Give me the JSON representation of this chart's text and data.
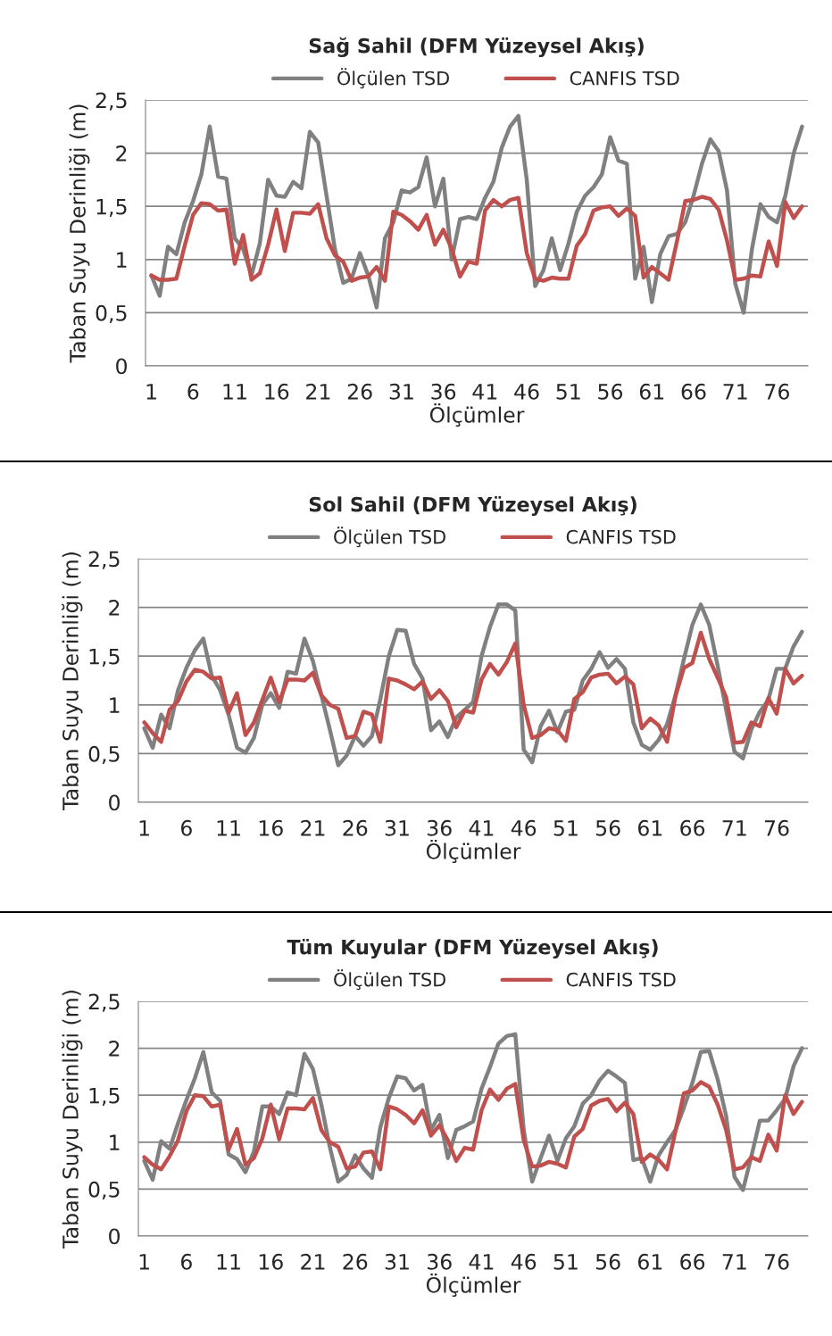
{
  "chart_data": [
    {
      "type": "line",
      "title": "Sağ Sahil (DFM Yüzeysel Akış)",
      "xlabel": "Ölçümler",
      "ylabel": "Taban Suyu Derinliği (m)",
      "categories": [
        "1",
        null,
        null,
        null,
        null,
        "6",
        null,
        null,
        null,
        null,
        "11",
        null,
        null,
        null,
        null,
        "16",
        null,
        null,
        null,
        null,
        "21",
        null,
        null,
        null,
        null,
        "26",
        null,
        null,
        null,
        null,
        "31",
        null,
        null,
        null,
        null,
        "36",
        null,
        null,
        null,
        null,
        "41",
        null,
        null,
        null,
        null,
        "46",
        null,
        null,
        null,
        null,
        "51",
        null,
        null,
        null,
        null,
        "56",
        null,
        null,
        null,
        null,
        "61",
        null,
        null,
        null,
        null,
        "66",
        null,
        null,
        null,
        null,
        "71",
        null,
        null,
        null,
        null,
        "76",
        null,
        null,
        null
      ],
      "ylim": [
        0,
        2.5
      ],
      "yticks": [
        0,
        {
          "value": 0.5,
          "label": "0,5"
        },
        1,
        {
          "value": 1.5,
          "label": "1,5"
        },
        2,
        {
          "value": 2.5,
          "label": "2,5"
        }
      ],
      "grid": "y",
      "legend": "top",
      "marker": "none",
      "line_style": "solid",
      "series": [
        {
          "name": "Ölçülen TSD",
          "color": "#808080",
          "values": [
            0.85,
            0.66,
            1.12,
            1.05,
            1.35,
            1.55,
            1.8,
            2.25,
            1.78,
            1.76,
            1.2,
            1.1,
            0.85,
            1.15,
            1.75,
            1.6,
            1.59,
            1.73,
            1.67,
            2.2,
            2.1,
            1.6,
            1.1,
            0.78,
            0.82,
            1.06,
            0.85,
            0.55,
            1.2,
            1.35,
            1.65,
            1.63,
            1.68,
            1.96,
            1.5,
            1.76,
            1.0,
            1.38,
            1.4,
            1.38,
            1.58,
            1.73,
            2.05,
            2.25,
            2.35,
            1.75,
            0.75,
            0.9,
            1.2,
            0.9,
            1.15,
            1.45,
            1.6,
            1.68,
            1.8,
            2.15,
            1.93,
            1.9,
            0.82,
            1.12,
            0.6,
            1.05,
            1.22,
            1.24,
            1.35,
            1.6,
            1.9,
            2.13,
            2.02,
            1.65,
            0.77,
            0.5,
            1.1,
            1.52,
            1.4,
            1.35,
            1.6,
            2.0,
            2.25
          ]
        },
        {
          "name": "CANFIS TSD",
          "color": "#c0504d",
          "values": [
            0.85,
            0.81,
            0.81,
            0.82,
            1.13,
            1.42,
            1.53,
            1.52,
            1.46,
            1.47,
            0.96,
            1.23,
            0.81,
            0.87,
            1.14,
            1.47,
            1.08,
            1.44,
            1.44,
            1.43,
            1.52,
            1.2,
            1.04,
            0.98,
            0.8,
            0.83,
            0.84,
            0.93,
            0.8,
            1.45,
            1.42,
            1.36,
            1.28,
            1.42,
            1.14,
            1.28,
            1.1,
            0.84,
            0.98,
            0.96,
            1.46,
            1.56,
            1.5,
            1.56,
            1.58,
            1.06,
            0.82,
            0.8,
            0.83,
            0.82,
            0.82,
            1.13,
            1.24,
            1.46,
            1.49,
            1.5,
            1.41,
            1.48,
            1.41,
            0.83,
            0.93,
            0.87,
            0.81,
            1.17,
            1.55,
            1.56,
            1.59,
            1.57,
            1.47,
            1.18,
            0.81,
            0.82,
            0.85,
            0.84,
            1.17,
            0.94,
            1.54,
            1.39,
            1.5
          ]
        }
      ]
    },
    {
      "type": "line",
      "title": "Sol Sahil (DFM Yüzeysel Akış)",
      "xlabel": "Ölçümler",
      "ylabel": "Taban Suyu Derinliği (m)",
      "categories": [
        "1",
        null,
        null,
        null,
        null,
        "6",
        null,
        null,
        null,
        null,
        "11",
        null,
        null,
        null,
        null,
        "16",
        null,
        null,
        null,
        null,
        "21",
        null,
        null,
        null,
        null,
        "26",
        null,
        null,
        null,
        null,
        "31",
        null,
        null,
        null,
        null,
        "36",
        null,
        null,
        null,
        null,
        "41",
        null,
        null,
        null,
        null,
        "46",
        null,
        null,
        null,
        null,
        "51",
        null,
        null,
        null,
        null,
        "56",
        null,
        null,
        null,
        null,
        "61",
        null,
        null,
        null,
        null,
        "66",
        null,
        null,
        null,
        null,
        "71",
        null,
        null,
        null,
        null,
        "76",
        null,
        null,
        null
      ],
      "ylim": [
        0,
        2.5
      ],
      "yticks": [
        0,
        {
          "value": 0.5,
          "label": "0,5"
        },
        1,
        {
          "value": 1.5,
          "label": "1,5"
        },
        2,
        {
          "value": 2.5,
          "label": "2,5"
        }
      ],
      "grid": "y",
      "legend": "top",
      "marker": "none",
      "line_style": "solid",
      "series": [
        {
          "name": "Ölçülen TSD",
          "color": "#808080",
          "values": [
            0.76,
            0.56,
            0.9,
            0.76,
            1.15,
            1.38,
            1.56,
            1.68,
            1.3,
            1.15,
            0.9,
            0.56,
            0.51,
            0.66,
            1.0,
            1.12,
            0.97,
            1.34,
            1.32,
            1.68,
            1.45,
            1.1,
            0.75,
            0.38,
            0.48,
            0.68,
            0.58,
            0.68,
            1.06,
            1.5,
            1.77,
            1.76,
            1.42,
            1.27,
            0.74,
            0.83,
            0.67,
            0.87,
            0.95,
            1.03,
            1.5,
            1.8,
            2.03,
            2.03,
            1.97,
            0.54,
            0.41,
            0.78,
            0.94,
            0.72,
            0.93,
            0.95,
            1.25,
            1.37,
            1.54,
            1.38,
            1.47,
            1.37,
            0.82,
            0.59,
            0.54,
            0.64,
            0.8,
            1.1,
            1.47,
            1.82,
            2.03,
            1.82,
            1.4,
            0.95,
            0.52,
            0.45,
            0.75,
            0.93,
            1.05,
            1.37,
            1.37,
            1.6,
            1.75
          ]
        },
        {
          "name": "CANFIS TSD",
          "color": "#c0504d",
          "values": [
            0.82,
            0.71,
            0.62,
            0.95,
            1.04,
            1.24,
            1.36,
            1.34,
            1.27,
            1.28,
            0.92,
            1.12,
            0.69,
            0.82,
            1.05,
            1.28,
            1.03,
            1.26,
            1.26,
            1.25,
            1.33,
            1.1,
            1.0,
            0.96,
            0.66,
            0.68,
            0.93,
            0.9,
            0.62,
            1.27,
            1.25,
            1.21,
            1.16,
            1.24,
            1.06,
            1.15,
            1.04,
            0.77,
            0.94,
            0.92,
            1.26,
            1.42,
            1.31,
            1.44,
            1.63,
            1.0,
            0.66,
            0.69,
            0.76,
            0.74,
            0.63,
            1.06,
            1.13,
            1.28,
            1.31,
            1.32,
            1.22,
            1.29,
            1.21,
            0.76,
            0.86,
            0.79,
            0.62,
            1.09,
            1.38,
            1.43,
            1.74,
            1.47,
            1.28,
            1.08,
            0.61,
            0.62,
            0.82,
            0.78,
            1.07,
            0.91,
            1.37,
            1.22,
            1.3
          ]
        }
      ]
    },
    {
      "type": "line",
      "title": "Tüm Kuyular (DFM Yüzeysel Akış)",
      "xlabel": "Ölçümler",
      "ylabel": "Taban Suyu Derinliği (m)",
      "categories": [
        "1",
        null,
        null,
        null,
        null,
        "6",
        null,
        null,
        null,
        null,
        "11",
        null,
        null,
        null,
        null,
        "16",
        null,
        null,
        null,
        null,
        "21",
        null,
        null,
        null,
        null,
        "26",
        null,
        null,
        null,
        null,
        "31",
        null,
        null,
        null,
        null,
        "36",
        null,
        null,
        null,
        null,
        "41",
        null,
        null,
        null,
        null,
        "46",
        null,
        null,
        null,
        null,
        "51",
        null,
        null,
        null,
        null,
        "56",
        null,
        null,
        null,
        null,
        "61",
        null,
        null,
        null,
        null,
        "66",
        null,
        null,
        null,
        null,
        "71",
        null,
        null,
        null,
        null,
        "76",
        null,
        null,
        null
      ],
      "ylim": [
        0,
        2.5
      ],
      "yticks": [
        0,
        {
          "value": 0.5,
          "label": "0,5"
        },
        1,
        {
          "value": 1.5,
          "label": "1,5"
        },
        2,
        {
          "value": 2.5,
          "label": "2,5"
        }
      ],
      "grid": "y",
      "legend": "top",
      "marker": "none",
      "line_style": "solid",
      "series": [
        {
          "name": "Ölçülen TSD",
          "color": "#808080",
          "values": [
            0.8,
            0.6,
            1.01,
            0.93,
            1.2,
            1.45,
            1.68,
            1.96,
            1.53,
            1.44,
            0.87,
            0.82,
            0.68,
            0.9,
            1.38,
            1.38,
            1.3,
            1.53,
            1.5,
            1.94,
            1.78,
            1.4,
            0.95,
            0.58,
            0.65,
            0.86,
            0.72,
            0.62,
            1.16,
            1.47,
            1.7,
            1.68,
            1.55,
            1.61,
            1.13,
            1.29,
            0.83,
            1.13,
            1.17,
            1.22,
            1.57,
            1.8,
            2.05,
            2.13,
            2.15,
            1.13,
            0.58,
            0.83,
            1.07,
            0.8,
            1.04,
            1.17,
            1.41,
            1.5,
            1.66,
            1.76,
            1.7,
            1.63,
            0.81,
            0.83,
            0.58,
            0.86,
            1.0,
            1.13,
            1.37,
            1.63,
            1.96,
            1.97,
            1.67,
            1.28,
            0.63,
            0.49,
            0.85,
            1.23,
            1.23,
            1.34,
            1.46,
            1.81,
            2.0
          ]
        },
        {
          "name": "CANFIS TSD",
          "color": "#c0504d",
          "values": [
            0.84,
            0.76,
            0.71,
            0.85,
            1.02,
            1.33,
            1.5,
            1.49,
            1.38,
            1.4,
            0.92,
            1.14,
            0.76,
            0.83,
            1.04,
            1.4,
            1.03,
            1.36,
            1.36,
            1.35,
            1.47,
            1.13,
            1.0,
            0.95,
            0.72,
            0.74,
            0.89,
            0.9,
            0.71,
            1.38,
            1.35,
            1.29,
            1.2,
            1.34,
            1.07,
            1.18,
            1.02,
            0.8,
            0.94,
            0.92,
            1.34,
            1.56,
            1.45,
            1.57,
            1.62,
            1.02,
            0.74,
            0.75,
            0.79,
            0.77,
            0.73,
            1.06,
            1.14,
            1.39,
            1.44,
            1.46,
            1.33,
            1.42,
            1.3,
            0.79,
            0.87,
            0.81,
            0.71,
            1.12,
            1.52,
            1.55,
            1.64,
            1.59,
            1.4,
            1.13,
            0.71,
            0.73,
            0.84,
            0.8,
            1.08,
            0.91,
            1.5,
            1.3,
            1.43
          ]
        }
      ]
    }
  ]
}
